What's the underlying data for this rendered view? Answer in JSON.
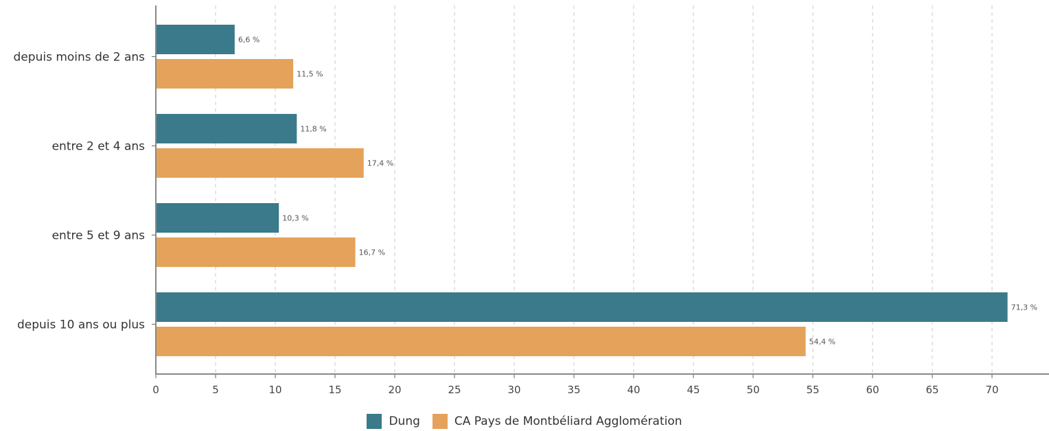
{
  "chart_data": {
    "type": "bar",
    "orientation": "horizontal",
    "categories": [
      "depuis moins de 2 ans",
      "entre 2 et 4 ans",
      "entre 5 et 9 ans",
      "depuis 10 ans ou plus"
    ],
    "series": [
      {
        "name": "Dung",
        "color": "#3a7a8a",
        "values": [
          6.6,
          11.8,
          10.3,
          71.3
        ],
        "labels": [
          "6,6 %",
          "11,8 %",
          "10,3 %",
          "71,3 %"
        ]
      },
      {
        "name": "CA Pays de Montbéliard Agglomération",
        "color": "#e5a25a",
        "values": [
          11.5,
          17.4,
          16.7,
          54.4
        ],
        "labels": [
          "11,5 %",
          "17,4 %",
          "16,7 %",
          "54,4 %"
        ]
      }
    ],
    "xlim": [
      0,
      75
    ],
    "xticks": [
      0,
      5,
      10,
      15,
      20,
      25,
      30,
      35,
      40,
      45,
      50,
      55,
      60,
      65,
      70
    ],
    "grid": "vertical dashed",
    "legend_position": "bottom-center",
    "title": "",
    "xlabel": "",
    "ylabel": ""
  }
}
